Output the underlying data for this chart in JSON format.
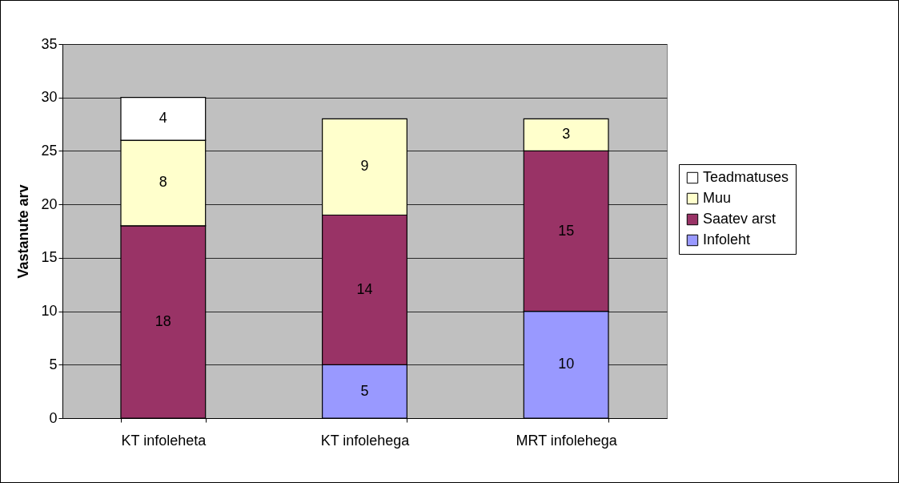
{
  "chart_data": {
    "type": "bar",
    "stacked": true,
    "ylabel": "Vastanute arv",
    "categories": [
      "KT infoleheta",
      "KT infolehega",
      "MRT infolehega"
    ],
    "series": [
      {
        "name": "Infoleht",
        "color": "#9999ff",
        "values": [
          null,
          5,
          10
        ]
      },
      {
        "name": "Saatev arst",
        "color": "#993366",
        "values": [
          18,
          14,
          15
        ]
      },
      {
        "name": "Muu",
        "color": "#ffffcc",
        "values": [
          8,
          9,
          3
        ]
      },
      {
        "name": "Teadmatuses",
        "color": "#ffffff",
        "values": [
          4,
          null,
          null
        ]
      }
    ],
    "ylim": [
      0,
      35
    ],
    "yticks": [
      0,
      5,
      10,
      15,
      20,
      25,
      30,
      35
    ],
    "grid": "y",
    "legend": "right",
    "data_labels": true
  }
}
